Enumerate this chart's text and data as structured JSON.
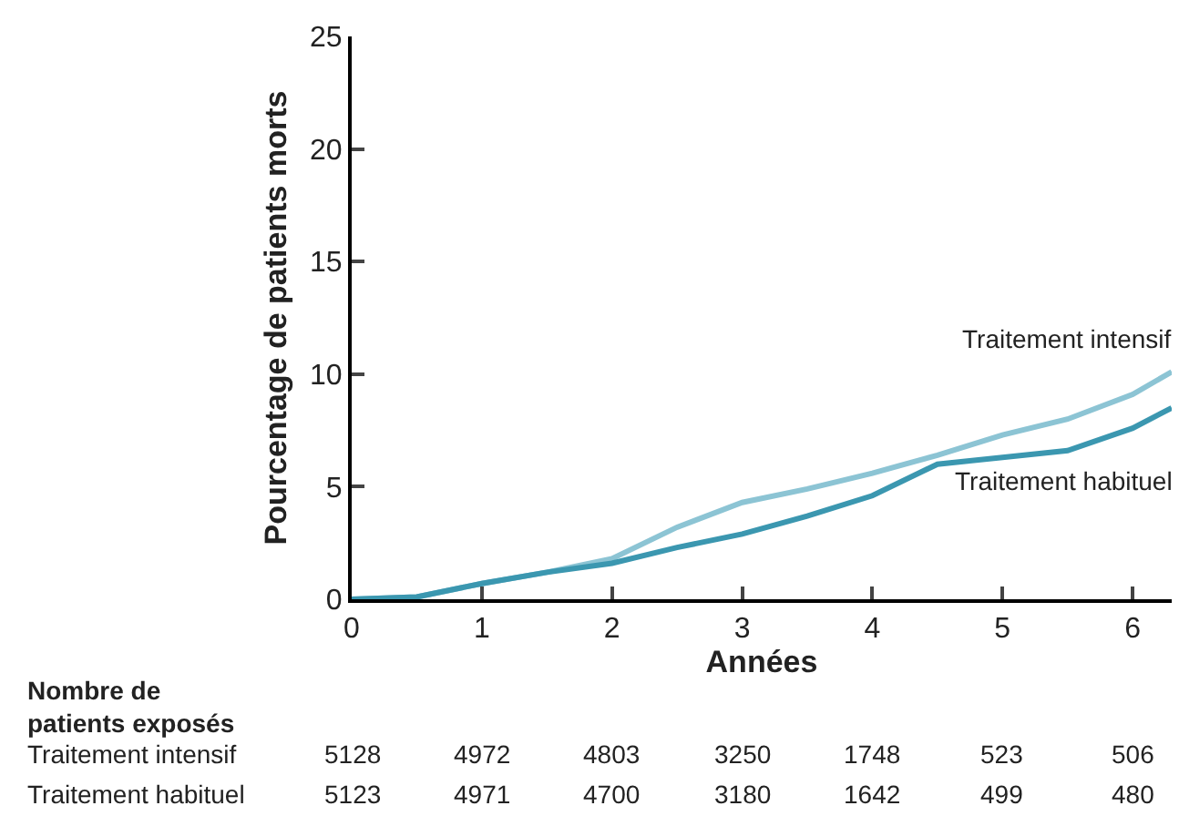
{
  "chart_data": {
    "type": "line",
    "xlabel": "Années",
    "ylabel": "Pourcentage de patients morts",
    "x": [
      0,
      0.5,
      1,
      1.5,
      2,
      2.5,
      3,
      3.5,
      4,
      4.5,
      5,
      5.5,
      6,
      6.3
    ],
    "series": [
      {
        "name": "Traitement intensif",
        "color": "#8cc4d4",
        "values": [
          0,
          0.1,
          0.7,
          1.2,
          1.8,
          3.2,
          4.3,
          4.9,
          5.6,
          6.4,
          7.3,
          8.0,
          9.1,
          10.1
        ]
      },
      {
        "name": "Traitement habituel",
        "color": "#3b97b0",
        "values": [
          0,
          0.1,
          0.7,
          1.2,
          1.6,
          2.3,
          2.9,
          3.7,
          4.6,
          6.0,
          6.3,
          6.6,
          7.6,
          8.5
        ]
      }
    ],
    "xlim": [
      0,
      6.3
    ],
    "xticks": [
      0,
      1,
      2,
      3,
      4,
      5,
      6
    ],
    "ylim": [
      0,
      25
    ],
    "yticks": [
      0,
      5,
      10,
      15,
      20,
      25
    ],
    "grid": false,
    "legend": false,
    "marker": "none",
    "line_style": "solid",
    "annotations": [
      "Nombre de patients exposés",
      "Traitement intensif 5128 4972 4803 3250 1748 523 506",
      "Traitement habituel 5123 4971 4700 3180 1642 499 480"
    ]
  }
}
